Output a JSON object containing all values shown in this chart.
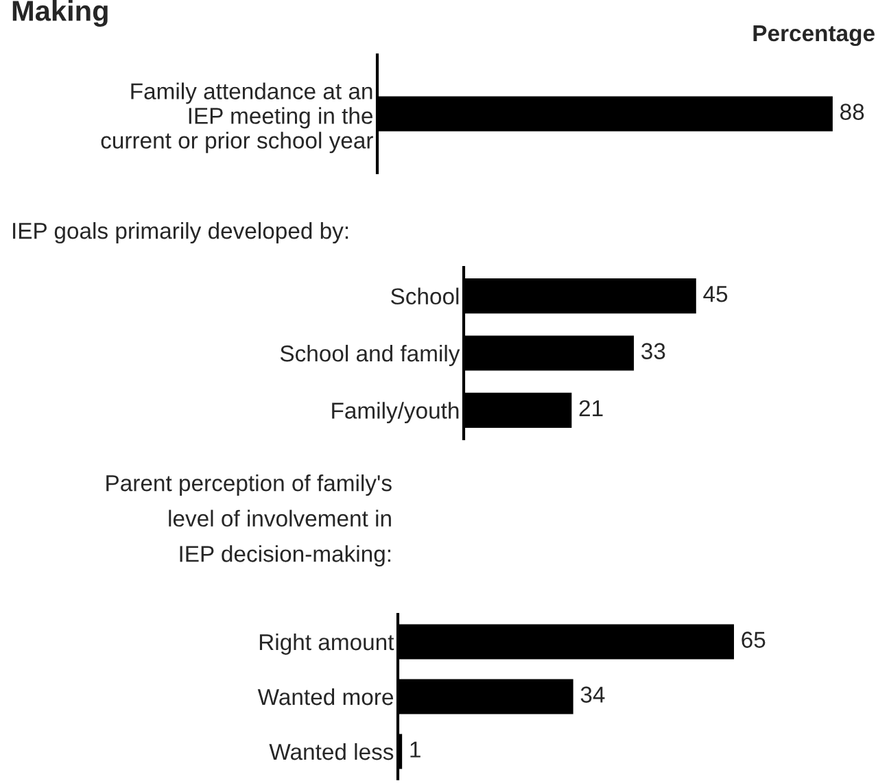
{
  "chart_data": [
    {
      "type": "bar",
      "orientation": "horizontal",
      "title": "Making",
      "xlabel": "Percentage",
      "categories": [
        "Family attendance at an\nIEP meeting in the\ncurrent or prior school year"
      ],
      "values": [
        88
      ],
      "color": "#000000",
      "data_labels": true,
      "tick_labels": "y",
      "grid": false,
      "legend": false
    },
    {
      "type": "bar",
      "orientation": "horizontal",
      "title": "IEP goals primarily developed by:",
      "categories": [
        "School",
        "School and family",
        "Family/youth"
      ],
      "values": [
        45,
        33,
        21
      ],
      "color": "#000000",
      "data_labels": true,
      "tick_labels": "y",
      "grid": false,
      "legend": false
    },
    {
      "type": "bar",
      "orientation": "horizontal",
      "title": "Parent perception of family's\nlevel of involvement in\nIEP decision-making:",
      "categories": [
        "Right amount",
        "Wanted more",
        "Wanted less"
      ],
      "values": [
        65,
        34,
        1
      ],
      "color": "#000000",
      "data_labels": true,
      "tick_labels": "y",
      "grid": false,
      "legend": false
    }
  ]
}
